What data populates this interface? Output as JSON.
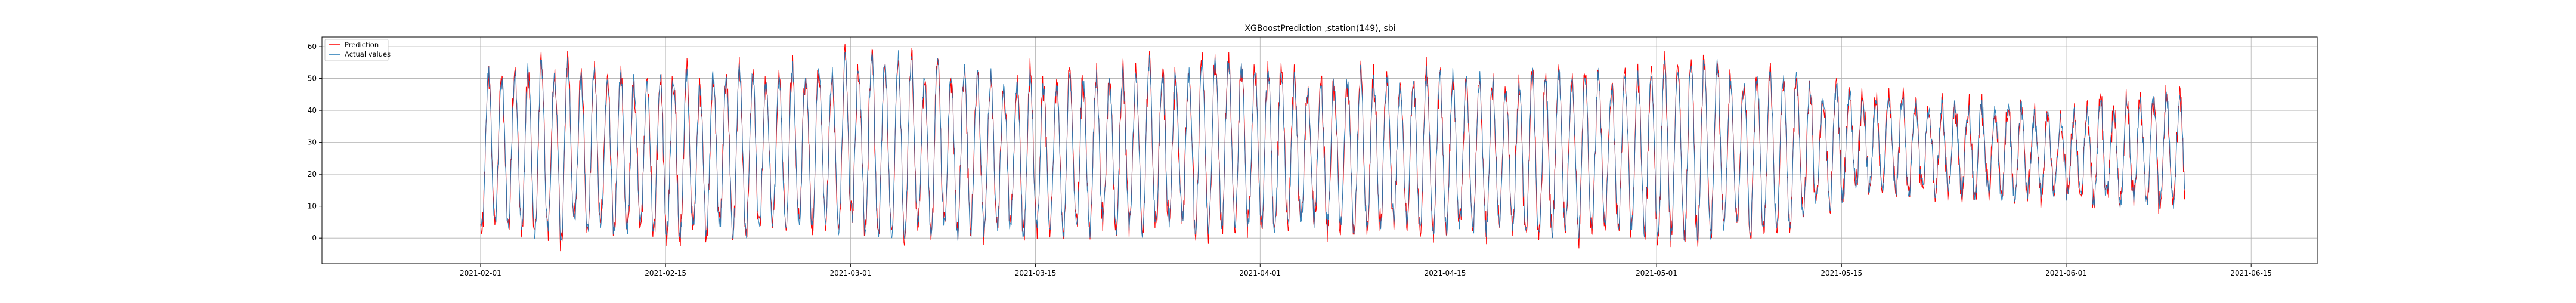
{
  "chart_data": {
    "type": "line",
    "title": "XGBoostPrediction ,station(149), sbi",
    "xlabel": "",
    "ylabel": "",
    "xlim": [
      "2021-01-20",
      "2021-06-20"
    ],
    "ylim": [
      -8,
      63
    ],
    "x_ticks": [
      "2021-02-01",
      "2021-02-15",
      "2021-03-01",
      "2021-03-15",
      "2021-04-01",
      "2021-04-15",
      "2021-05-01",
      "2021-05-15",
      "2021-06-01",
      "2021-06-15"
    ],
    "y_ticks": [
      0,
      10,
      20,
      30,
      40,
      50,
      60
    ],
    "grid": true,
    "legend_placement": "top-left",
    "data_range": [
      "2021-02-01",
      "2021-06-10"
    ],
    "series": [
      {
        "name": "Prediction",
        "color": "#ff0000"
      },
      {
        "name": "Actual values",
        "color": "#1f77b4"
      }
    ],
    "daily_samples": [
      {
        "date": "2021-02-01",
        "low": 2,
        "high": 53
      },
      {
        "date": "2021-02-08",
        "low": 0,
        "high": 55
      },
      {
        "date": "2021-02-15",
        "low": 1,
        "high": 50
      },
      {
        "date": "2021-02-22",
        "low": 1,
        "high": 52
      },
      {
        "date": "2021-03-01",
        "low": 2,
        "high": 58
      },
      {
        "date": "2021-03-08",
        "low": 0,
        "high": 55
      },
      {
        "date": "2021-03-15",
        "low": 1,
        "high": 50
      },
      {
        "date": "2021-03-22",
        "low": 1,
        "high": 53
      },
      {
        "date": "2021-03-29",
        "low": 2,
        "high": 57
      },
      {
        "date": "2021-04-05",
        "low": 3,
        "high": 50
      },
      {
        "date": "2021-04-12",
        "low": 2,
        "high": 52
      },
      {
        "date": "2021-04-19",
        "low": 1,
        "high": 50
      },
      {
        "date": "2021-04-26",
        "low": 1,
        "high": 52
      },
      {
        "date": "2021-05-03",
        "low": 0,
        "high": 55
      },
      {
        "date": "2021-05-10",
        "low": 2,
        "high": 52
      },
      {
        "date": "2021-05-17",
        "low": 15,
        "high": 45
      },
      {
        "date": "2021-05-24",
        "low": 13,
        "high": 42
      },
      {
        "date": "2021-05-31",
        "low": 12,
        "high": 40
      },
      {
        "date": "2021-06-07",
        "low": 10,
        "high": 45
      }
    ]
  }
}
